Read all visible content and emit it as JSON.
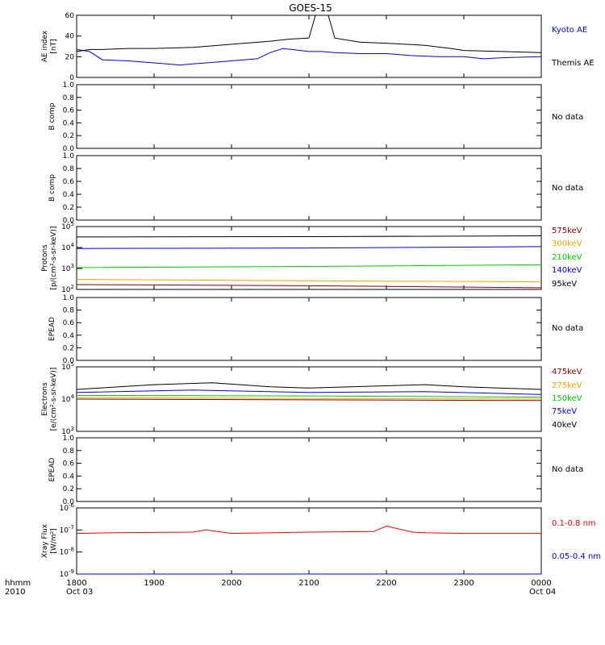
{
  "title": "GOES-15",
  "time_axis": {
    "row_label": "hhmm",
    "year": "2010",
    "ticks": [
      "1800",
      "1900",
      "2000",
      "2100",
      "2200",
      "2300",
      "0000"
    ],
    "start_date": "Oct 03",
    "end_date": "Oct 04"
  },
  "colors": {
    "black": "#000000",
    "blue": "#0000ff",
    "green": "#00cc00",
    "orange": "#ffa500",
    "darkred": "#8b0000",
    "red": "#ff0000"
  },
  "panels": [
    {
      "ylabel": [
        "AE index",
        "[nT]"
      ]
    },
    {
      "ylabel": [
        "B comp"
      ],
      "status": "No data"
    },
    {
      "ylabel": [
        "B comp"
      ],
      "status": "No data"
    },
    {
      "ylabel": [
        "Protons",
        "[p/(cm²-s-sr-keV)]"
      ]
    },
    {
      "ylabel": [
        "EPEAD"
      ],
      "status": "No data"
    },
    {
      "ylabel": [
        "Electrons",
        "[e/(cm²-s-sr-keV)]"
      ]
    },
    {
      "ylabel": [
        "EPEAD"
      ],
      "status": "No data"
    },
    {
      "ylabel": [
        "Xray Flux",
        "[W/m²]"
      ]
    }
  ],
  "chart_data": [
    {
      "type": "line",
      "panel": "AE index",
      "xlabel": "hhmm",
      "ylabel": "AE index [nT]",
      "ylim": [
        0,
        60
      ],
      "yticks": [
        "0",
        "20",
        "40",
        "60"
      ],
      "series": [
        {
          "name": "Kyoto AE",
          "color": "#0000ff",
          "x": [
            "1800",
            "1810",
            "1820",
            "1840",
            "1900",
            "1920",
            "1930",
            "2000",
            "2020",
            "2030",
            "2040",
            "2100",
            "2110",
            "2120",
            "2140",
            "2200",
            "2220",
            "2240",
            "2300",
            "2315",
            "2330",
            "0000"
          ],
          "values": [
            27,
            25,
            17,
            16,
            14,
            12,
            13,
            16,
            18,
            24,
            28,
            25,
            25,
            24,
            23,
            23,
            21,
            20,
            20,
            18,
            19,
            20
          ]
        },
        {
          "name": "Themis AE",
          "color": "#000000",
          "x": [
            "1800",
            "1810",
            "1820",
            "1840",
            "1900",
            "1930",
            "2000",
            "2030",
            "2045",
            "2100",
            "2105",
            "2115",
            "2120",
            "2140",
            "2200",
            "2230",
            "2250",
            "2300",
            "2330",
            "0000"
          ],
          "values": [
            25,
            27,
            27,
            28,
            28,
            29,
            32,
            35,
            37,
            38,
            60,
            60,
            38,
            34,
            33,
            31,
            28,
            26,
            25,
            24
          ]
        }
      ]
    },
    {
      "type": "line",
      "panel": "Protons",
      "ylabel": "Protons [p/(cm²-s-sr-keV)]",
      "yscale": "log",
      "ylim": [
        100,
        100000
      ],
      "series": [
        {
          "name": "575keV",
          "color": "#8b0000",
          "x": [
            "1800",
            "2100",
            "0000"
          ],
          "values": [
            170,
            150,
            120
          ]
        },
        {
          "name": "300keV",
          "color": "#ffa500",
          "x": [
            "1800",
            "2100",
            "0000"
          ],
          "values": [
            300,
            260,
            230
          ]
        },
        {
          "name": "210keV",
          "color": "#00cc00",
          "x": [
            "1800",
            "2100",
            "0000"
          ],
          "values": [
            1100,
            1250,
            1500
          ]
        },
        {
          "name": "140keV",
          "color": "#0000ff",
          "x": [
            "1800",
            "2100",
            "0000"
          ],
          "values": [
            9000,
            9500,
            11000
          ]
        },
        {
          "name": "95keV",
          "color": "#000000",
          "x": [
            "1800",
            "2100",
            "0000"
          ],
          "values": [
            32000,
            33000,
            36000
          ]
        }
      ]
    },
    {
      "type": "line",
      "panel": "Electrons",
      "ylabel": "Electrons [e/(cm²-s-sr-keV)]",
      "yscale": "log",
      "ylim": [
        1000,
        100000
      ],
      "series": [
        {
          "name": "475keV",
          "color": "#8b0000",
          "x": [
            "1800",
            "2100",
            "0000"
          ],
          "values": [
            10000,
            9500,
            9000
          ]
        },
        {
          "name": "275keV",
          "color": "#ffa500",
          "x": [
            "1800",
            "2100",
            "0000"
          ],
          "values": [
            11000,
            10500,
            10000
          ]
        },
        {
          "name": "150keV",
          "color": "#00cc00",
          "x": [
            "1800",
            "2100",
            "0000"
          ],
          "values": [
            13000,
            12500,
            11500
          ]
        },
        {
          "name": "75keV",
          "color": "#0000ff",
          "x": [
            "1800",
            "1930",
            "2100",
            "2230",
            "0000"
          ],
          "values": [
            16000,
            19000,
            16000,
            17000,
            14000
          ]
        },
        {
          "name": "40keV",
          "color": "#000000",
          "x": [
            "1800",
            "1900",
            "1945",
            "2030",
            "2100",
            "2230",
            "2300",
            "0000"
          ],
          "values": [
            20000,
            28000,
            32000,
            24000,
            22000,
            28000,
            24000,
            20000
          ]
        }
      ]
    },
    {
      "type": "line",
      "panel": "Xray Flux",
      "ylabel": "Xray Flux [W/m²]",
      "yscale": "log",
      "ylim": [
        1e-09,
        1e-06
      ],
      "series": [
        {
          "name": "0.1-0.8 nm",
          "color": "#ff0000",
          "x": [
            "1800",
            "1830",
            "1930",
            "1940",
            "2000",
            "2100",
            "2150",
            "2200",
            "2220",
            "2230",
            "2300",
            "2330",
            "0000"
          ],
          "values": [
            7e-08,
            7.5e-08,
            8e-08,
            1e-07,
            7e-08,
            8e-08,
            8.5e-08,
            1.5e-07,
            8e-08,
            7.5e-08,
            7e-08,
            7e-08,
            7e-08
          ]
        },
        {
          "name": "0.05-0.4 nm",
          "color": "#0000ff",
          "x": [
            "1800",
            "2100",
            "0000"
          ],
          "values": [
            1e-09,
            1e-09,
            1e-09
          ]
        }
      ]
    }
  ]
}
